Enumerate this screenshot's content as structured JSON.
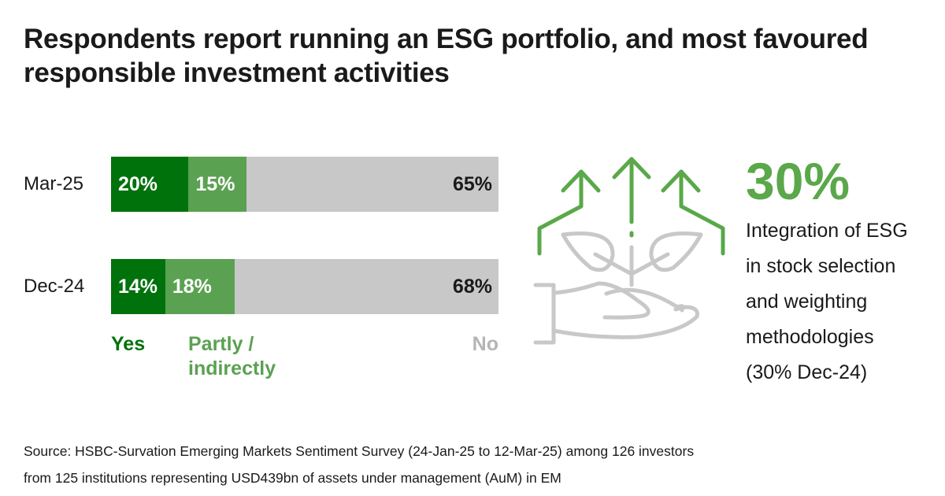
{
  "title": "Respondents report running an ESG portfolio, and most favoured responsible investment activities",
  "chart_data": {
    "type": "bar",
    "orientation": "horizontal-stacked-100",
    "categories": [
      "Mar-25",
      "Dec-24"
    ],
    "series": [
      {
        "name": "Yes",
        "values": [
          20,
          14
        ],
        "labels": [
          "20%",
          "14%"
        ],
        "color": "#00720b"
      },
      {
        "name": "Partly / indirectly",
        "values": [
          15,
          18
        ],
        "labels": [
          "15%",
          "18%"
        ],
        "color": "#5ba152"
      },
      {
        "name": "No",
        "values": [
          65,
          68
        ],
        "labels": [
          "65%",
          "68%"
        ],
        "color": "#c8c8c8"
      }
    ],
    "xlim": [
      0,
      100
    ],
    "legend": "bottom"
  },
  "legend": {
    "yes": "Yes",
    "partly_1": "Partly /",
    "partly_2": "indirectly",
    "no": "No"
  },
  "callout": {
    "value": "30%",
    "lines": [
      "Integration of ESG",
      "in stock selection",
      "and weighting",
      "methodologies",
      "(30% Dec-24)"
    ],
    "icon": "hand-plant-growth-arrows-icon",
    "colors": {
      "accent": "#5aa84a",
      "icon_gray": "#c8c8c8"
    }
  },
  "source": [
    "Source: HSBC-Survation Emerging Markets Sentiment Survey (24-Jan-25 to 12-Mar-25) among 126 investors",
    "from 125 institutions representing USD439bn of assets under management (AuM) in EM"
  ]
}
